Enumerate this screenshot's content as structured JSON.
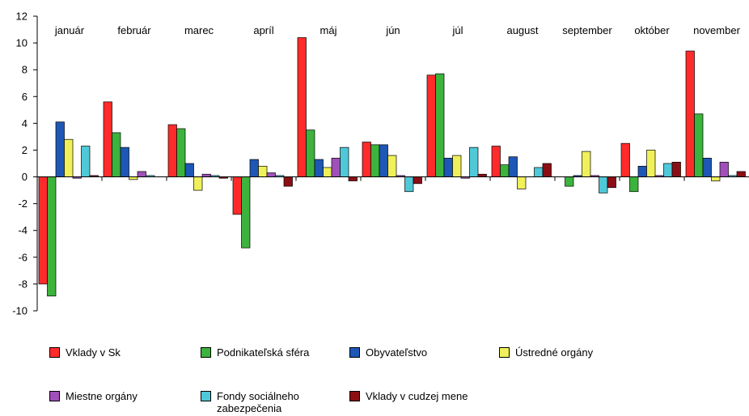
{
  "chart_data": {
    "type": "bar",
    "categories": [
      "január",
      "február",
      "marec",
      "apríl",
      "máj",
      "jún",
      "júl",
      "august",
      "september",
      "október",
      "november"
    ],
    "ylim": [
      -10,
      12
    ],
    "yticks": [
      -10,
      -8,
      -6,
      -4,
      -2,
      0,
      2,
      4,
      6,
      8,
      10,
      12
    ],
    "series": [
      {
        "name": "Vklady v Sk",
        "color": "#ff2b2b",
        "values": [
          -8.0,
          5.6,
          3.9,
          -2.8,
          10.4,
          2.6,
          7.6,
          2.3,
          0.0,
          2.5,
          9.4
        ]
      },
      {
        "name": "Podnikateľská sféra",
        "color": "#3cb33c",
        "values": [
          -8.9,
          3.3,
          3.6,
          -5.3,
          3.5,
          2.4,
          7.7,
          0.9,
          -0.7,
          -1.1,
          4.7
        ]
      },
      {
        "name": "Obyvateľstvo",
        "color": "#1e57b5",
        "values": [
          4.1,
          2.2,
          1.0,
          1.3,
          1.3,
          2.4,
          1.4,
          1.5,
          0.1,
          0.8,
          1.4
        ]
      },
      {
        "name": "Ústredné orgány",
        "color": "#f0f05a",
        "values": [
          2.8,
          -0.2,
          -1.0,
          0.8,
          0.7,
          1.6,
          1.6,
          -0.9,
          1.9,
          2.0,
          -0.3
        ]
      },
      {
        "name": "Miestne orgány",
        "color": "#a050b8",
        "values": [
          -0.1,
          0.4,
          0.2,
          0.3,
          1.4,
          0.1,
          -0.1,
          0.0,
          0.1,
          0.1,
          1.1
        ]
      },
      {
        "name": "Fondy sociálneho zabezpečenia",
        "color": "#4fc8d8",
        "values": [
          2.3,
          0.1,
          0.1,
          0.1,
          2.2,
          -1.1,
          2.2,
          0.7,
          -1.2,
          1.0,
          0.1
        ]
      },
      {
        "name": "Vklady v cudzej mene",
        "color": "#8b0e14",
        "values": [
          0.1,
          0.0,
          -0.1,
          -0.7,
          -0.3,
          -0.5,
          0.2,
          1.0,
          -0.8,
          1.1,
          0.4
        ]
      }
    ]
  }
}
